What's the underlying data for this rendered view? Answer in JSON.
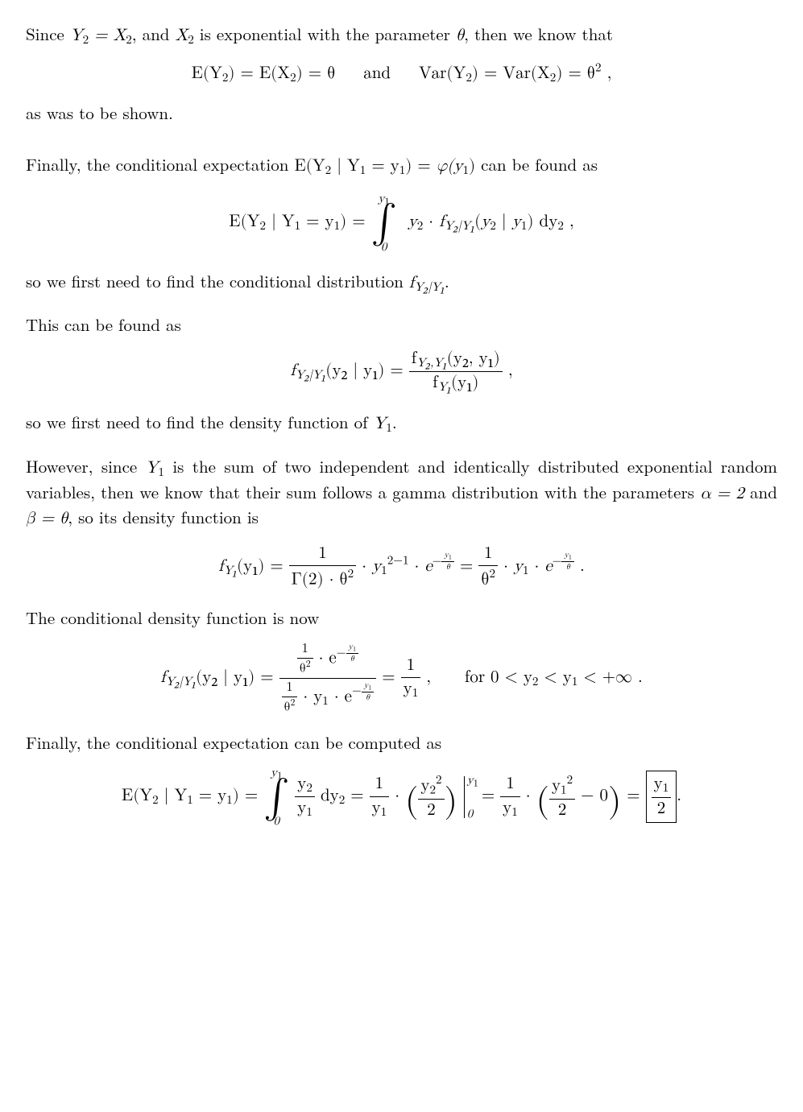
{
  "p1a": "Since ",
  "p1b": ", and ",
  "p1c": " is exponential with the parameter ",
  "p1d": ", then we know that",
  "eq1_lhs": "E(Y",
  "eq1_mid1": ") = E(X",
  "eq1_mid2": ") = θ",
  "and_text": "and",
  "eq1_var1": "Var(Y",
  "eq1_var2": ") = Var(X",
  "eq1_var3": ") = θ",
  "eq1_end": " ,",
  "p2": "as was to be shown.",
  "p3a": "Finally, the conditional expectation ",
  "p3b": " can be found as",
  "eq2_lhs": "E(Y",
  "eq2_mid": " | Y",
  "eq2_eq": " = y",
  "eq2_rhs": ") = ",
  "eq2_phi": "φ(y",
  "p4a": "so we first need to find the conditional distribution ",
  "p4b": ".",
  "p5": "This can be found as",
  "p6a": "so we first need to find the density function of ",
  "p6b": ".",
  "p7a": "However, since ",
  "p7b": " is the sum of two independent and identically distributed exponential random variables, then we know that their sum follows a gamma distribution with the parameters ",
  "p7c": " and ",
  "p7d": ", so its density function is",
  "alpha_eq": "α = 2",
  "beta_eq": "β = θ",
  "p8": "The conditional density function is now",
  "eq_for": "for 0 < y",
  "eq_for2": " < y",
  "eq_for3": " < +∞ .",
  "p9": "Finally, the conditional expectation can be computed as",
  "sym_Y2": "Y",
  "sym_X2": "X",
  "sym_theta": "θ",
  "sub1": "1",
  "sub2": "2",
  "sup2": "2",
  "sup_2m1": "2−1",
  "dy2": " dy",
  "comma": " ,",
  "period": " .",
  "int_top": "y",
  "int_bot": "0",
  "Gamma2": "Γ(2) · θ",
  "one": "1",
  "y1": "y",
  "y2": "y",
  "theta2": "θ",
  "e_neg": "e",
  "exp_neg_frac_num": "y",
  "exp_neg_frac_den": "θ",
  "f_label": "f",
  "sub_Y2Y1": "Y₂|Y₁",
  "sub_Y2cY1": "Y₂,Y₁",
  "sub_Y1": "Y₁",
  "sub_Y2": "Y₂",
  "args_y2y1": "(y₂ | y₁) = ",
  "args_y2y1b": "(y₂, y₁)",
  "args_y1": "(y₁)",
  "args_y1eq": "(y₁) = ",
  "cdot": " · ",
  "eq_sign": " = ",
  "minus0": " − 0",
  "half": "2"
}
